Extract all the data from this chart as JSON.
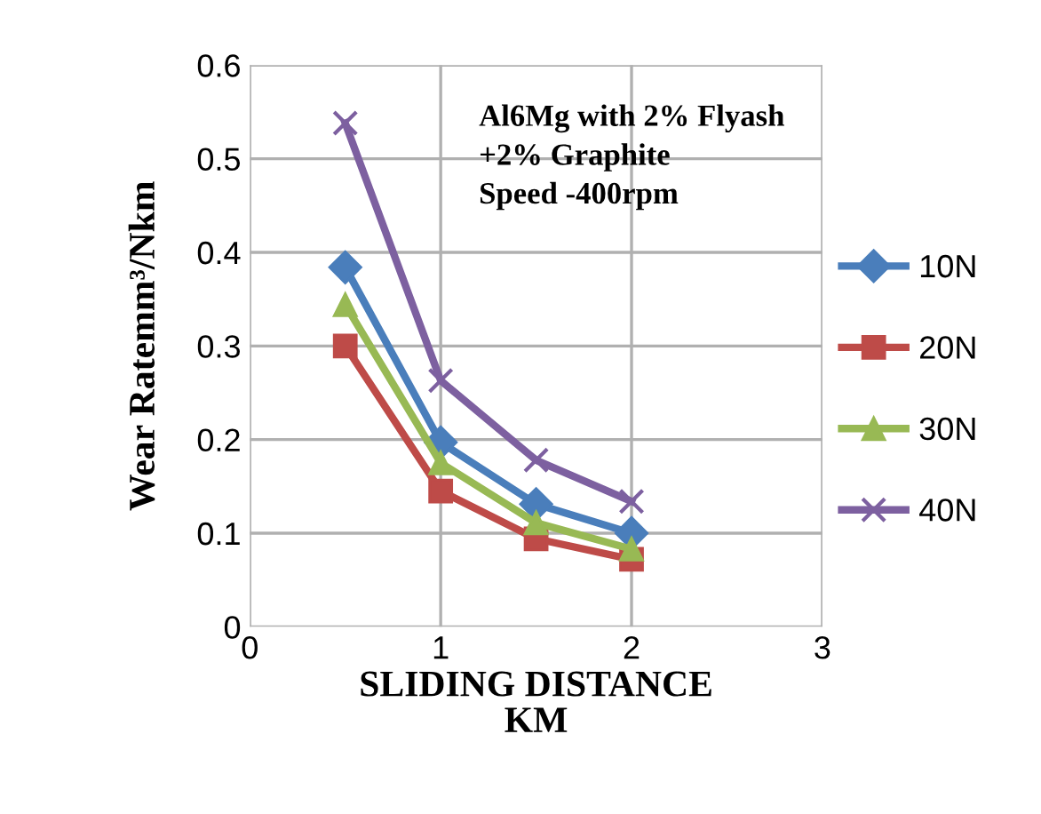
{
  "chart_data": {
    "type": "line",
    "xlabel": "SLIDING DISTANCE\nKM",
    "ylabel": "Wear Ratemm³/Nkm",
    "annotations": [
      "Al6Mg with 2% Flyash\n+2% Graphite\nSpeed -400rpm"
    ],
    "x": [
      0.5,
      1,
      1.5,
      2
    ],
    "series": [
      {
        "name": "10N",
        "color": "#4a7ebb",
        "marker": "diamond",
        "values": [
          0.384,
          0.197,
          0.131,
          0.1
        ]
      },
      {
        "name": "20N",
        "color": "#be4b48",
        "marker": "square",
        "values": [
          0.3,
          0.145,
          0.094,
          0.072
        ]
      },
      {
        "name": "30N",
        "color": "#98b954",
        "marker": "triangle",
        "values": [
          0.344,
          0.175,
          0.111,
          0.083
        ]
      },
      {
        "name": "40N",
        "color": "#7d60a0",
        "marker": "cross",
        "values": [
          0.538,
          0.263,
          0.178,
          0.134
        ]
      }
    ],
    "xlim": [
      0,
      3
    ],
    "xticks": [
      0,
      1,
      2,
      3
    ],
    "ylim": [
      0,
      0.6
    ],
    "yticks": [
      0,
      0.1,
      0.2,
      0.3,
      0.4,
      0.5,
      0.6
    ],
    "grid": true,
    "legend": "right",
    "line_style": "solid"
  }
}
